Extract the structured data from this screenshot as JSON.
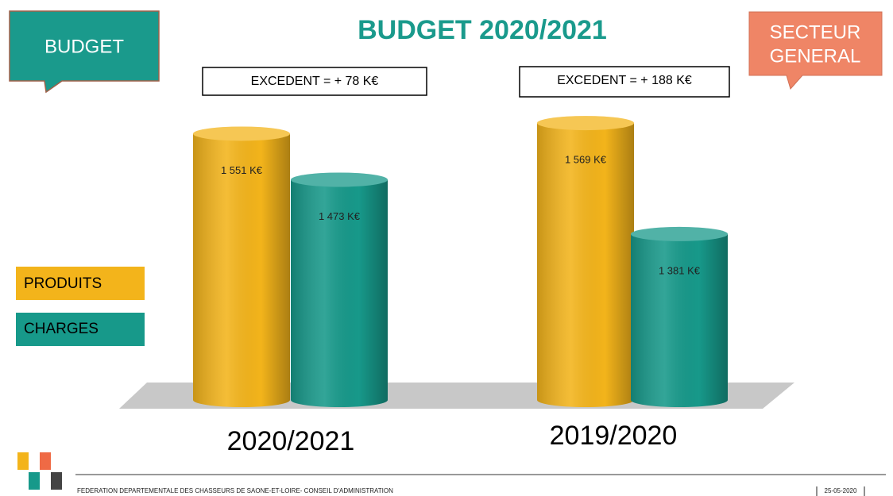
{
  "chart_data": {
    "type": "bar",
    "title": "BUDGET 2020/2021",
    "categories": [
      "2020/2021",
      "2019/2020"
    ],
    "series": [
      {
        "name": "PRODUITS",
        "color": "#f3b41b",
        "values": [
          1551,
          1569
        ],
        "value_labels": [
          "1 551 K€",
          "1 569 K€"
        ]
      },
      {
        "name": "CHARGES",
        "color": "#17998a",
        "values": [
          1473,
          1381
        ],
        "value_labels": [
          "1 473 K€",
          "1 381 K€"
        ]
      }
    ],
    "ylim": [
      1100,
      1600
    ],
    "annotations": [
      "EXCEDENT = + 78 K€",
      "EXCEDENT = + 188 K€"
    ]
  },
  "header": {
    "left_tag": "BUDGET",
    "right_tag": [
      "SECTEUR",
      "GENERAL"
    ]
  },
  "footer": {
    "text": "FEDERATION DEPARTEMENTALE DES CHASSEURS DE SAONE-ET-LOIRE- CONSEIL D'ADMINISTRATION",
    "date": "25-05-2020"
  }
}
